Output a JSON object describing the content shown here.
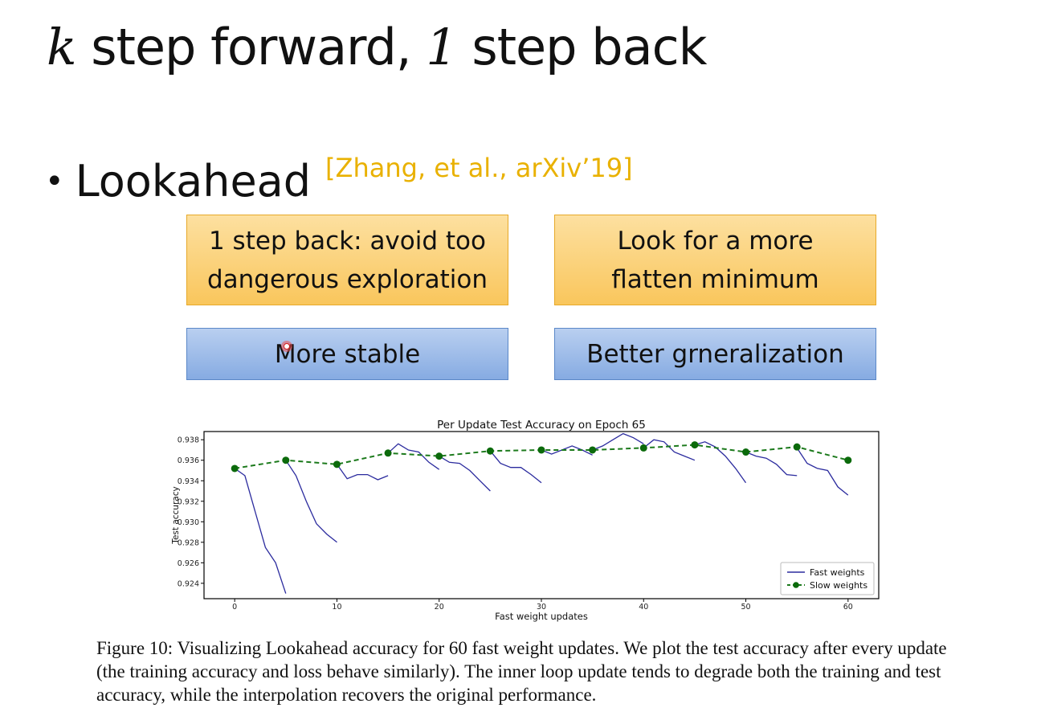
{
  "slide": {
    "title_k": "k",
    "title_part1": " step forward, ",
    "title_1": "1",
    "title_part2": " step back",
    "bullet_text": "Lookahead",
    "citation": "[Zhang, et al., arXiv’19]",
    "boxes": {
      "top_left_line1": "1 step back: avoid too",
      "top_left_line2": "dangerous exploration",
      "top_right_line1": "Look for a more",
      "top_right_line2": "flatten minimum",
      "bottom_left": "More stable",
      "bottom_right": "Better grneralization"
    },
    "caption": "Figure 10: Visualizing Lookahead accuracy for 60 fast weight updates. We plot the test accuracy after every update (the training accuracy and loss behave similarly). The inner loop update tends to degrade both the training and test accuracy, while the interpolation recovers the original performance."
  },
  "colors": {
    "fast_line": "#2b2b9e",
    "slow_line": "#1c7a1c",
    "slow_marker": "#0b6a0b"
  },
  "chart_data": {
    "type": "line",
    "title": "Per Update Test Accuracy on Epoch 65",
    "xlabel": "Fast weight updates",
    "ylabel": "Test accuracy",
    "xlim": [
      -3,
      63
    ],
    "ylim": [
      0.9225,
      0.9388
    ],
    "xticks": [
      0,
      10,
      20,
      30,
      40,
      50,
      60
    ],
    "yticks": [
      0.924,
      0.926,
      0.928,
      0.93,
      0.932,
      0.934,
      0.936,
      0.938
    ],
    "ytick_labels": [
      "0.924",
      "0.926",
      "0.928",
      "0.930",
      "0.932",
      "0.934",
      "0.936",
      "0.938"
    ],
    "legend_position": "lower-right",
    "series": [
      {
        "name": "Fast weights",
        "style": "solid",
        "segments": [
          [
            [
              0,
              0.9352
            ],
            [
              1,
              0.9345
            ],
            [
              2,
              0.931
            ],
            [
              3,
              0.9275
            ],
            [
              4,
              0.926
            ],
            [
              5,
              0.923
            ]
          ],
          [
            [
              5,
              0.936
            ],
            [
              6,
              0.9345
            ],
            [
              7,
              0.932
            ],
            [
              8,
              0.9298
            ],
            [
              9,
              0.9288
            ],
            [
              10,
              0.928
            ]
          ],
          [
            [
              10,
              0.9356
            ],
            [
              11,
              0.9342
            ],
            [
              12,
              0.9346
            ],
            [
              13,
              0.9346
            ],
            [
              14,
              0.9341
            ],
            [
              15,
              0.9345
            ]
          ],
          [
            [
              15,
              0.9367
            ],
            [
              16,
              0.9376
            ],
            [
              17,
              0.937
            ],
            [
              18,
              0.9368
            ],
            [
              19,
              0.9358
            ],
            [
              20,
              0.9351
            ]
          ],
          [
            [
              20,
              0.9364
            ],
            [
              21,
              0.9358
            ],
            [
              22,
              0.9357
            ],
            [
              23,
              0.935
            ],
            [
              24,
              0.934
            ],
            [
              25,
              0.933
            ]
          ],
          [
            [
              25,
              0.9369
            ],
            [
              26,
              0.9357
            ],
            [
              27,
              0.9353
            ],
            [
              28,
              0.9353
            ],
            [
              29,
              0.9346
            ],
            [
              30,
              0.9338
            ]
          ],
          [
            [
              30,
              0.937
            ],
            [
              31,
              0.9366
            ],
            [
              32,
              0.937
            ],
            [
              33,
              0.9374
            ],
            [
              34,
              0.937
            ],
            [
              35,
              0.9365
            ]
          ],
          [
            [
              35,
              0.937
            ],
            [
              36,
              0.9374
            ],
            [
              37,
              0.938
            ],
            [
              38,
              0.9386
            ],
            [
              39,
              0.9382
            ],
            [
              40,
              0.9376
            ]
          ],
          [
            [
              40,
              0.9372
            ],
            [
              41,
              0.938
            ],
            [
              42,
              0.9378
            ],
            [
              43,
              0.9368
            ],
            [
              44,
              0.9364
            ],
            [
              45,
              0.936
            ]
          ],
          [
            [
              45,
              0.9375
            ],
            [
              46,
              0.9378
            ],
            [
              47,
              0.9373
            ],
            [
              48,
              0.9364
            ],
            [
              49,
              0.9352
            ],
            [
              50,
              0.9338
            ]
          ],
          [
            [
              50,
              0.9368
            ],
            [
              51,
              0.9364
            ],
            [
              52,
              0.9362
            ],
            [
              53,
              0.9356
            ],
            [
              54,
              0.9346
            ],
            [
              55,
              0.9345
            ]
          ],
          [
            [
              55,
              0.9372
            ],
            [
              56,
              0.9357
            ],
            [
              57,
              0.9352
            ],
            [
              58,
              0.935
            ],
            [
              59,
              0.9334
            ],
            [
              60,
              0.9326
            ]
          ]
        ]
      },
      {
        "name": "Slow weights",
        "style": "dashed",
        "marker": "circle",
        "points": [
          [
            0,
            0.9352
          ],
          [
            5,
            0.936
          ],
          [
            10,
            0.9356
          ],
          [
            15,
            0.9367
          ],
          [
            20,
            0.9364
          ],
          [
            25,
            0.9369
          ],
          [
            30,
            0.937
          ],
          [
            35,
            0.937
          ],
          [
            40,
            0.9372
          ],
          [
            45,
            0.9375
          ],
          [
            50,
            0.9368
          ],
          [
            55,
            0.9373
          ],
          [
            60,
            0.936
          ]
        ]
      }
    ]
  }
}
